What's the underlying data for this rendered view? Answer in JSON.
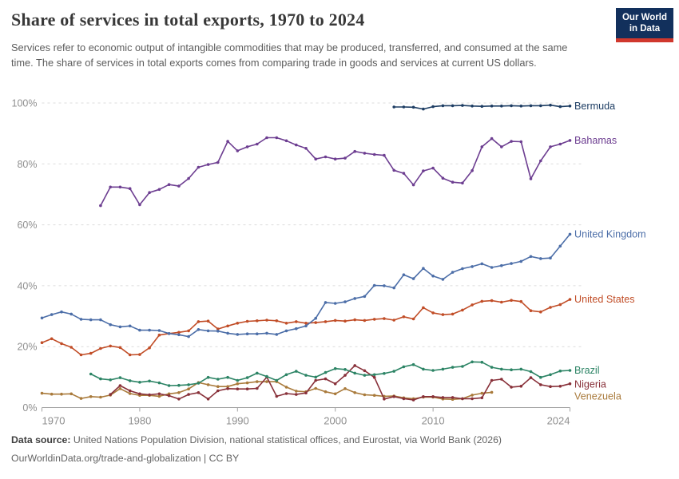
{
  "header": {
    "title": "Share of services in total exports, 1970 to 2024",
    "subtitle": "Services refer to economic output of intangible commodities that may be produced, transferred, and consumed at the same time. The share of services in total exports comes from comparing trade in goods and services at current US dollars.",
    "logo": {
      "line1": "Our World",
      "line2": "in Data",
      "bg_color": "#12305c",
      "stripe_color": "#d0382d"
    }
  },
  "footer": {
    "source_label": "Data source:",
    "source_text": " United Nations Population Division, national statistical offices, and Eurostat, via World Bank (2026)",
    "link_text": "OurWorldinData.org/trade-and-globalization | CC BY"
  },
  "chart_data": {
    "type": "line",
    "title": "Share of services in total exports, 1970 to 2024",
    "xlabel": "",
    "ylabel": "",
    "x_range": [
      1970,
      2024
    ],
    "ylim": [
      0,
      100
    ],
    "grid": "dashed horizontal",
    "legend_position": "right of line ends, colored text labels",
    "x_ticks": [
      1970,
      1980,
      1990,
      2000,
      2010,
      2024
    ],
    "y_ticks": [
      0,
      20,
      40,
      60,
      80,
      100
    ],
    "y_tick_labels": [
      "0%",
      "20%",
      "40%",
      "60%",
      "80%",
      "100%"
    ],
    "series": [
      {
        "name": "Venezuela",
        "color": "#a97a3b",
        "start_year": 1970,
        "values": [
          4.7,
          4.4,
          4.4,
          4.5,
          3.0,
          3.6,
          3.4,
          4.1,
          6.2,
          4.6,
          4.0,
          4.0,
          3.7,
          4.5,
          4.9,
          6.1,
          8.2,
          7.5,
          6.9,
          6.9,
          7.8,
          8.1,
          8.5,
          8.5,
          8.5,
          6.7,
          5.4,
          5.2,
          6.3,
          5.2,
          4.5,
          6.2,
          4.9,
          4.2,
          4.0,
          3.7,
          3.8,
          3.2,
          2.9,
          3.4,
          3.4,
          2.8,
          2.7,
          2.9,
          4.1,
          4.7,
          5.0
        ]
      },
      {
        "name": "Nigeria",
        "color": "#883039",
        "start_year": 1977,
        "values": [
          4.3,
          7.2,
          5.5,
          4.5,
          4.2,
          4.5,
          3.9,
          2.8,
          4.3,
          4.9,
          2.8,
          5.5,
          6.2,
          6.1,
          6.1,
          6.3,
          10.0,
          3.7,
          4.6,
          4.3,
          4.8,
          8.9,
          9.4,
          7.8,
          10.6,
          13.8,
          12.1,
          9.9,
          2.8,
          3.6,
          2.9,
          2.5,
          3.6,
          3.6,
          3.3,
          3.3,
          2.9,
          2.9,
          3.2,
          8.9,
          9.3,
          6.7,
          7.0,
          9.8,
          7.5,
          6.9,
          7.0,
          7.8
        ]
      },
      {
        "name": "Brazil",
        "color": "#2c8465",
        "start_year": 1975,
        "values": [
          11.0,
          9.4,
          9.1,
          9.8,
          8.8,
          8.3,
          8.7,
          8.1,
          7.2,
          7.3,
          7.5,
          8.0,
          9.9,
          9.3,
          9.9,
          8.9,
          9.8,
          11.3,
          10.2,
          8.9,
          10.8,
          11.9,
          10.6,
          10.0,
          11.5,
          12.8,
          12.5,
          11.3,
          10.6,
          10.8,
          11.2,
          11.9,
          13.4,
          14.1,
          12.6,
          12.2,
          12.6,
          13.2,
          13.5,
          15.0,
          14.9,
          13.2,
          12.6,
          12.4,
          12.6,
          11.8,
          9.9,
          10.8,
          12.0,
          12.2
        ]
      },
      {
        "name": "United States",
        "color": "#c14d27",
        "start_year": 1970,
        "values": [
          21.3,
          22.6,
          21.0,
          19.8,
          17.3,
          17.8,
          19.4,
          20.2,
          19.7,
          17.3,
          17.4,
          19.6,
          23.8,
          24.3,
          24.7,
          25.2,
          28.2,
          28.4,
          25.8,
          26.8,
          27.7,
          28.3,
          28.5,
          28.7,
          28.5,
          27.7,
          28.2,
          27.7,
          27.9,
          28.2,
          28.6,
          28.4,
          28.8,
          28.6,
          29.0,
          29.2,
          28.7,
          29.8,
          29.1,
          32.8,
          31.1,
          30.5,
          30.7,
          32.0,
          33.7,
          34.9,
          35.1,
          34.6,
          35.2,
          34.8,
          31.8,
          31.4,
          32.9,
          33.8,
          35.5
        ]
      },
      {
        "name": "United Kingdom",
        "color": "#4c6ea8",
        "start_year": 1970,
        "values": [
          29.4,
          30.5,
          31.4,
          30.7,
          29.0,
          28.8,
          28.8,
          27.2,
          26.5,
          26.8,
          25.4,
          25.4,
          25.3,
          24.3,
          23.9,
          23.3,
          25.6,
          25.2,
          25.1,
          24.4,
          24.0,
          24.2,
          24.2,
          24.4,
          24.0,
          25.2,
          25.9,
          26.8,
          29.3,
          34.5,
          34.2,
          34.7,
          35.8,
          36.5,
          40.1,
          40.0,
          39.3,
          43.6,
          42.3,
          45.7,
          43.2,
          42.1,
          44.4,
          45.6,
          46.3,
          47.2,
          46.0,
          46.6,
          47.3,
          48.0,
          49.6,
          48.9,
          49.1,
          53.0,
          56.9
        ]
      },
      {
        "name": "Bahamas",
        "color": "#6d3e91",
        "start_year": 1976,
        "values": [
          66.3,
          72.4,
          72.4,
          71.9,
          66.6,
          70.6,
          71.6,
          73.2,
          72.7,
          75.2,
          78.9,
          79.8,
          80.5,
          87.4,
          84.3,
          85.6,
          86.5,
          88.6,
          88.6,
          87.6,
          86.2,
          85.1,
          81.6,
          82.3,
          81.6,
          81.9,
          84.1,
          83.5,
          83.1,
          82.8,
          77.9,
          76.9,
          73.1,
          77.7,
          78.6,
          75.3,
          74.0,
          73.7,
          77.8,
          85.6,
          88.3,
          85.6,
          87.4,
          87.3,
          75.1,
          81.0,
          85.6,
          86.5,
          87.7
        ]
      },
      {
        "name": "Bermuda",
        "color": "#1d3d63",
        "start_year": 2006,
        "values": [
          98.7,
          98.7,
          98.6,
          98.0,
          98.8,
          99.1,
          99.1,
          99.2,
          99.0,
          98.9,
          99.0,
          99.0,
          99.1,
          99.0,
          99.1,
          99.1,
          99.3,
          98.8,
          99.0
        ]
      }
    ]
  }
}
